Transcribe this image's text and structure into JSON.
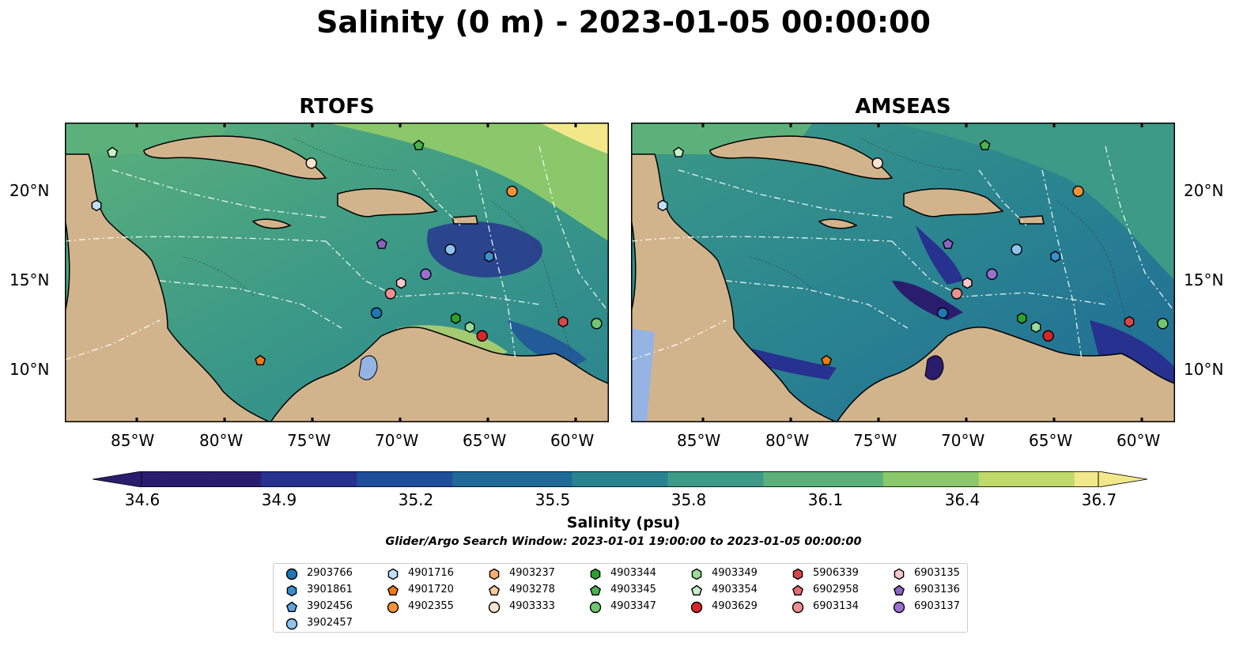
{
  "figure": {
    "title": "Salinity (0 m) - 2023-01-05 00:00:00",
    "panels": [
      {
        "title": "RTOFS"
      },
      {
        "title": "AMSEAS"
      }
    ],
    "lat_labels": [
      "20°N",
      "15°N",
      "10°N"
    ],
    "lon_labels": [
      "85°W",
      "80°W",
      "75°W",
      "70°W",
      "65°W",
      "60°W"
    ],
    "colorbar": {
      "label": "Salinity (psu)",
      "ticks": [
        "34.6",
        "34.9",
        "35.2",
        "35.5",
        "35.8",
        "36.1",
        "36.4",
        "36.7"
      ],
      "range": [
        34.6,
        36.7
      ],
      "colors": [
        "#2a1d6e",
        "#27318f",
        "#1f4f9a",
        "#1f6a96",
        "#2a8490",
        "#3c9a86",
        "#5cb17a",
        "#8ac86b",
        "#bfd96a",
        "#f2e88a"
      ]
    },
    "search_window": "Glider/Argo Search Window: 2023-01-01 19:00:00 to 2023-01-05 00:00:00",
    "land_color": "#d2b48c",
    "ocean_fill_outside": "#2a1d6e"
  },
  "legend": {
    "entries": [
      {
        "id": "2903766",
        "marker": "circle",
        "color": "#1f77b4"
      },
      {
        "id": "3901861",
        "marker": "hexagon",
        "color": "#3a8fd0"
      },
      {
        "id": "3902456",
        "marker": "pentagon",
        "color": "#5aa7e0"
      },
      {
        "id": "3902457",
        "marker": "circle",
        "color": "#8fc4ee"
      },
      {
        "id": "4901716",
        "marker": "hexagon",
        "color": "#bfe0f7"
      },
      {
        "id": "4901720",
        "marker": "pentagon",
        "color": "#ef7a12"
      },
      {
        "id": "4902355",
        "marker": "circle",
        "color": "#f7913a"
      },
      {
        "id": "4903237",
        "marker": "hexagon",
        "color": "#f9b070"
      },
      {
        "id": "4903278",
        "marker": "pentagon",
        "color": "#fbcb9e"
      },
      {
        "id": "4903333",
        "marker": "circle",
        "color": "#fde3cc"
      },
      {
        "id": "4903344",
        "marker": "hexagon",
        "color": "#2ca02c"
      },
      {
        "id": "4903345",
        "marker": "pentagon",
        "color": "#4cb34c"
      },
      {
        "id": "4903347",
        "marker": "circle",
        "color": "#6fc86f"
      },
      {
        "id": "4903349",
        "marker": "hexagon",
        "color": "#98dc98"
      },
      {
        "id": "4903354",
        "marker": "pentagon",
        "color": "#c8efc8"
      },
      {
        "id": "4903629",
        "marker": "circle",
        "color": "#d62728"
      },
      {
        "id": "5906339",
        "marker": "hexagon",
        "color": "#d94648"
      },
      {
        "id": "6902958",
        "marker": "pentagon",
        "color": "#e46c6e"
      },
      {
        "id": "6903134",
        "marker": "circle",
        "color": "#ee9090"
      },
      {
        "id": "6903135",
        "marker": "hexagon",
        "color": "#f8c8c8"
      },
      {
        "id": "6903136",
        "marker": "pentagon",
        "color": "#8c63c2"
      },
      {
        "id": "6903137",
        "marker": "circle",
        "color": "#9a6fd0"
      }
    ]
  },
  "observations": [
    {
      "id": "4903354",
      "lon": -86.3,
      "lat": 22.3
    },
    {
      "id": "4903333",
      "lon": -75.0,
      "lat": 21.7
    },
    {
      "id": "4903345",
      "lon": -68.9,
      "lat": 22.7
    },
    {
      "id": "4902355",
      "lon": -63.6,
      "lat": 20.1
    },
    {
      "id": "4901716",
      "lon": -87.2,
      "lat": 19.3
    },
    {
      "id": "6903136",
      "lon": -71.0,
      "lat": 17.1
    },
    {
      "id": "3902457",
      "lon": -67.1,
      "lat": 16.8
    },
    {
      "id": "3901861",
      "lon": -64.9,
      "lat": 16.4
    },
    {
      "id": "6903137",
      "lon": -68.5,
      "lat": 15.4
    },
    {
      "id": "6903135",
      "lon": -69.9,
      "lat": 14.9
    },
    {
      "id": "6903134",
      "lon": -70.5,
      "lat": 14.3
    },
    {
      "id": "2903766",
      "lon": -71.3,
      "lat": 13.2
    },
    {
      "id": "4903344",
      "lon": -66.8,
      "lat": 12.9
    },
    {
      "id": "4903349",
      "lon": -66.0,
      "lat": 12.4
    },
    {
      "id": "4903629",
      "lon": -65.3,
      "lat": 11.9
    },
    {
      "id": "5906339",
      "lon": -60.7,
      "lat": 12.7
    },
    {
      "id": "4903347",
      "lon": -58.8,
      "lat": 12.6
    },
    {
      "id": "4901720",
      "lon": -77.9,
      "lat": 10.5
    }
  ]
}
